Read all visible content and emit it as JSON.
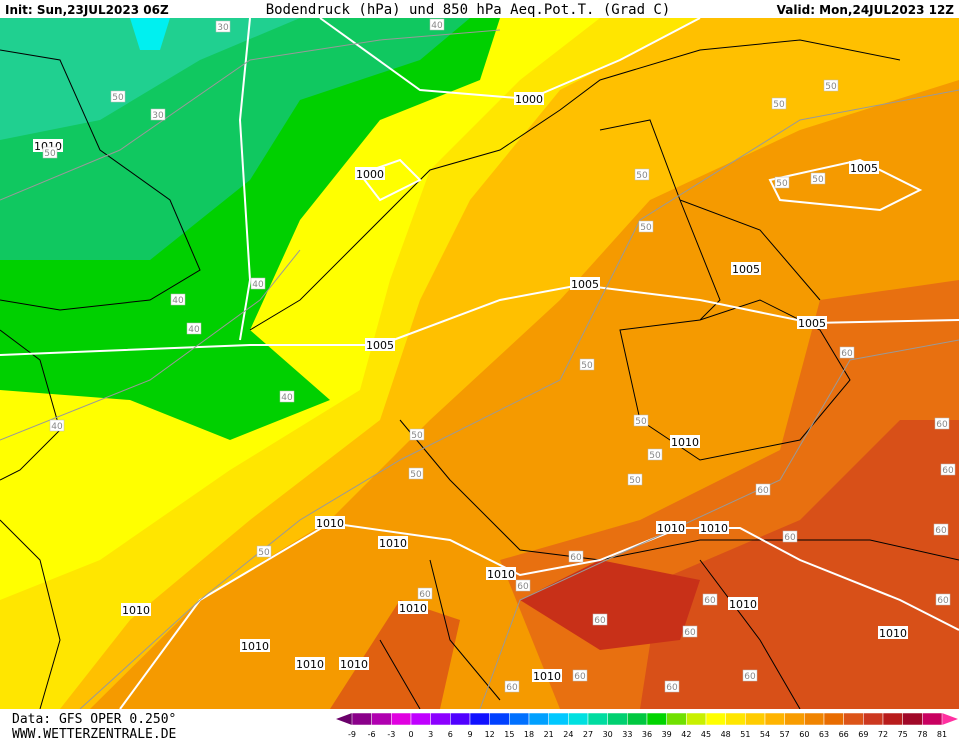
{
  "header": {
    "init": "Init: Sun,23JUL2023 06Z",
    "title": "Bodendruck (hPa) und 850 hPa Aeq.Pot.T. (Grad C)",
    "valid": "Valid: Mon,24JUL2023 12Z"
  },
  "map": {
    "isobar_labels": [
      "1000",
      "1010",
      "1000",
      "1005",
      "1005",
      "1005",
      "1005",
      "1005",
      "1010",
      "1010",
      "1010",
      "1010",
      "1010",
      "1010",
      "1010",
      "1010",
      "1010",
      "1010",
      "1010",
      "1010",
      "1010",
      "1010"
    ],
    "theta_labels": [
      "30",
      "40",
      "50",
      "30",
      "50",
      "50",
      "50",
      "50",
      "50",
      "50",
      "50",
      "40",
      "40",
      "40",
      "50",
      "40",
      "40",
      "50",
      "50",
      "50",
      "50",
      "50",
      "60",
      "60",
      "60",
      "60",
      "60",
      "60",
      "50",
      "60",
      "60",
      "60",
      "60",
      "60",
      "60",
      "60",
      "60",
      "60",
      "60",
      "60"
    ]
  },
  "colorbar": {
    "ticks": [
      -9,
      -6,
      -3,
      0,
      3,
      6,
      9,
      12,
      15,
      18,
      21,
      24,
      27,
      30,
      33,
      36,
      39,
      42,
      45,
      48,
      51,
      54,
      57,
      60,
      63,
      66,
      69,
      72,
      75,
      78,
      81
    ],
    "colors": [
      "#8a008a",
      "#b000b0",
      "#e000e0",
      "#c000ff",
      "#8c00ff",
      "#5000ff",
      "#1010ff",
      "#0040ff",
      "#0070ff",
      "#00a0ff",
      "#00c8ff",
      "#00e0e0",
      "#00dca0",
      "#00d070",
      "#00c840",
      "#00d400",
      "#70e000",
      "#c8f000",
      "#ffff00",
      "#ffe600",
      "#ffcc00",
      "#ffb400",
      "#f89c00",
      "#f08400",
      "#e86c00",
      "#dc5418",
      "#cc3820",
      "#b81c1c",
      "#a00828",
      "#c80060"
    ],
    "under_color": "#6a006a",
    "over_color": "#ff30a0"
  },
  "footer": {
    "data": "Data: GFS OPER 0.250°",
    "site": "WWW.WETTERZENTRALE.DE"
  }
}
